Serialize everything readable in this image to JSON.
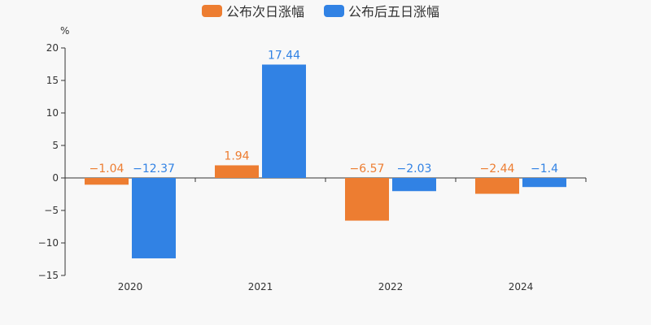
{
  "chart_data": {
    "type": "bar",
    "categories": [
      "2020",
      "2021",
      "2022",
      "2024"
    ],
    "series": [
      {
        "name": "公布次日涨幅",
        "color": "#ed7d31",
        "values": [
          -1.04,
          1.94,
          -6.57,
          -2.44
        ],
        "labels": [
          "−1.04",
          "1.94",
          "−6.57",
          "−2.44"
        ]
      },
      {
        "name": "公布后五日涨幅",
        "color": "#3182e4",
        "values": [
          -12.37,
          17.44,
          -2.03,
          -1.4
        ],
        "labels": [
          "−12.37",
          "17.44",
          "−2.03",
          "−1.4"
        ]
      }
    ],
    "ylabel": "%",
    "ylim": [
      -15,
      20
    ],
    "yticks": [
      20,
      15,
      10,
      5,
      0,
      -5,
      -10,
      -15
    ],
    "ytick_labels": [
      "20",
      "15",
      "10",
      "5",
      "0",
      "−5",
      "−10",
      "−15"
    ],
    "legend_position": "top-center",
    "grid": false
  }
}
